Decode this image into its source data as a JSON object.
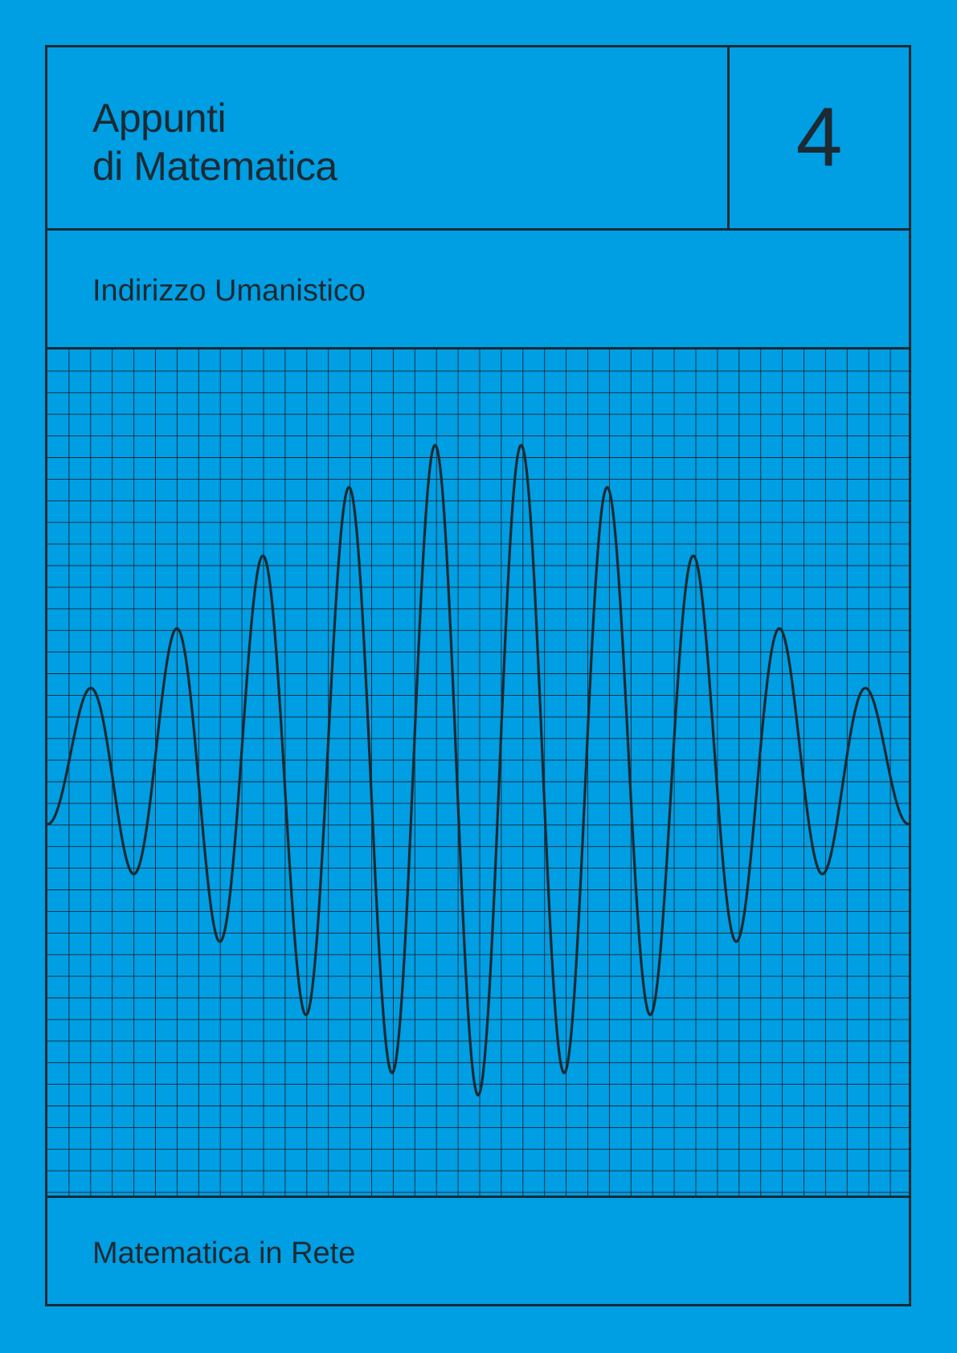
{
  "cover": {
    "title_line1": "Appunti",
    "title_line2": "di Matematica",
    "volume": "4",
    "subtitle": "Indirizzo Umanistico",
    "publisher": "Matematica in Rete"
  },
  "colors": {
    "background": "#009ee3",
    "ink": "#1c2a33"
  },
  "illustration": {
    "type": "wave-packet",
    "description_icon": "modulated-sine-wave-icon",
    "grid": true
  }
}
